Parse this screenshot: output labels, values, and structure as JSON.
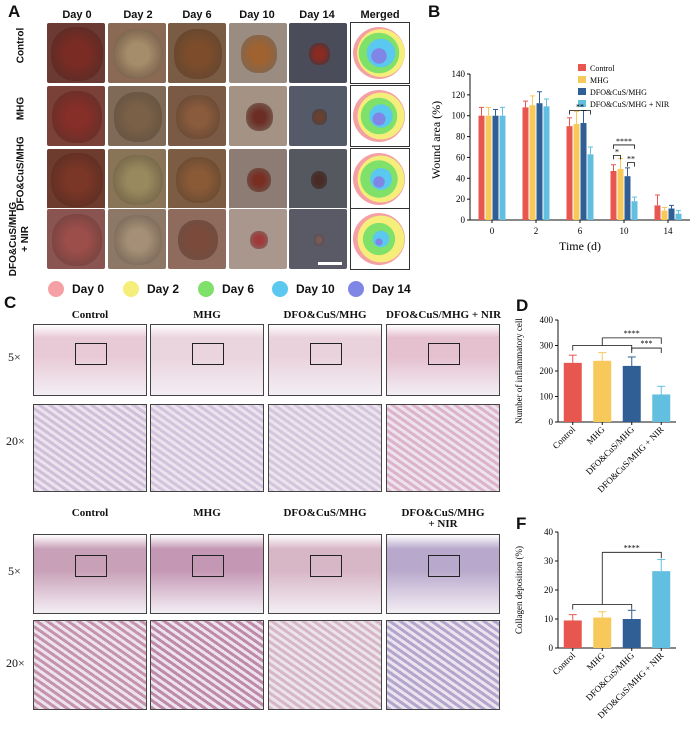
{
  "panels": {
    "A": "A",
    "B": "B",
    "C": "C",
    "D": "D",
    "F": "F"
  },
  "panelA": {
    "columns": [
      "Day 0",
      "Day 2",
      "Day 6",
      "Day 10",
      "Day 14",
      "Merged"
    ],
    "rows": [
      "Control",
      "MHG",
      "DFO&CuS/MHG",
      "DFO&CuS/MHG\n+ NIR"
    ],
    "legend": [
      {
        "label": "Day 0",
        "color": "#f4a0a4"
      },
      {
        "label": "Day 2",
        "color": "#f5ee7a"
      },
      {
        "label": "Day 6",
        "color": "#7fe06a"
      },
      {
        "label": "Day 10",
        "color": "#5bc8ef"
      },
      {
        "label": "Day 14",
        "color": "#7f86e6"
      }
    ]
  },
  "panelC": {
    "columns_he": [
      "Control",
      "MHG",
      "DFO&CuS/MHG",
      "DFO&CuS/MHG + NIR"
    ],
    "columns_mt": [
      "Control",
      "MHG",
      "DFO&CuS/MHG",
      "DFO&CuS/MHG\n+ NIR"
    ],
    "mag_low": "5×",
    "mag_high": "20×"
  },
  "chart_data": [
    {
      "panel": "B",
      "type": "bar",
      "xlabel": "Time (d)",
      "ylabel": "Wound area (%)",
      "ylim": [
        0,
        140
      ],
      "yticks": [
        0,
        20,
        40,
        60,
        80,
        100,
        120,
        140
      ],
      "categories": [
        "0",
        "2",
        "6",
        "10",
        "14"
      ],
      "series": [
        {
          "name": "Control",
          "color": "#e8574f",
          "values": [
            100,
            108,
            90,
            47,
            14
          ],
          "errors": [
            8,
            6,
            8,
            6,
            10
          ]
        },
        {
          "name": "MHG",
          "color": "#f7c85a",
          "values": [
            100,
            110,
            92,
            49,
            9
          ],
          "errors": [
            8,
            9,
            12,
            10,
            3
          ]
        },
        {
          "name": "DFO&CuS/MHG",
          "color": "#2f5f94",
          "values": [
            100,
            112,
            93,
            42,
            11
          ],
          "errors": [
            6,
            11,
            12,
            8,
            3
          ]
        },
        {
          "name": "DFO&CuS/MHG + NIR",
          "color": "#63bfe0",
          "values": [
            100,
            109,
            63,
            18,
            6
          ],
          "errors": [
            8,
            7,
            7,
            4,
            3
          ]
        }
      ],
      "annotations": [
        "**",
        "*",
        "****",
        "**"
      ]
    },
    {
      "panel": "D",
      "type": "bar",
      "ylabel": "Number of inflammatory cell",
      "ylim": [
        0,
        400
      ],
      "yticks": [
        0,
        100,
        200,
        300,
        400
      ],
      "categories": [
        "Control",
        "MHG",
        "DFO&CuS/MHG",
        "DFO&CuS/MHG + NIR"
      ],
      "values": [
        232,
        240,
        220,
        108
      ],
      "errors": [
        30,
        32,
        35,
        32
      ],
      "colors": [
        "#e8574f",
        "#f7c85a",
        "#2f5f94",
        "#63bfe0"
      ],
      "annotations": [
        "****",
        "***"
      ]
    },
    {
      "panel": "F",
      "type": "bar",
      "ylabel": "Collagen deposition (%)",
      "ylim": [
        0,
        40
      ],
      "yticks": [
        0,
        10,
        20,
        30,
        40
      ],
      "categories": [
        "Control",
        "MHG",
        "DFO&CuS/MHG",
        "DFO&CuS/MHG + NIR"
      ],
      "values": [
        9.5,
        10.5,
        10,
        26.5
      ],
      "errors": [
        2,
        2,
        3,
        4
      ],
      "colors": [
        "#e8574f",
        "#f7c85a",
        "#2f5f94",
        "#63bfe0"
      ],
      "annotations": [
        "****"
      ]
    }
  ]
}
